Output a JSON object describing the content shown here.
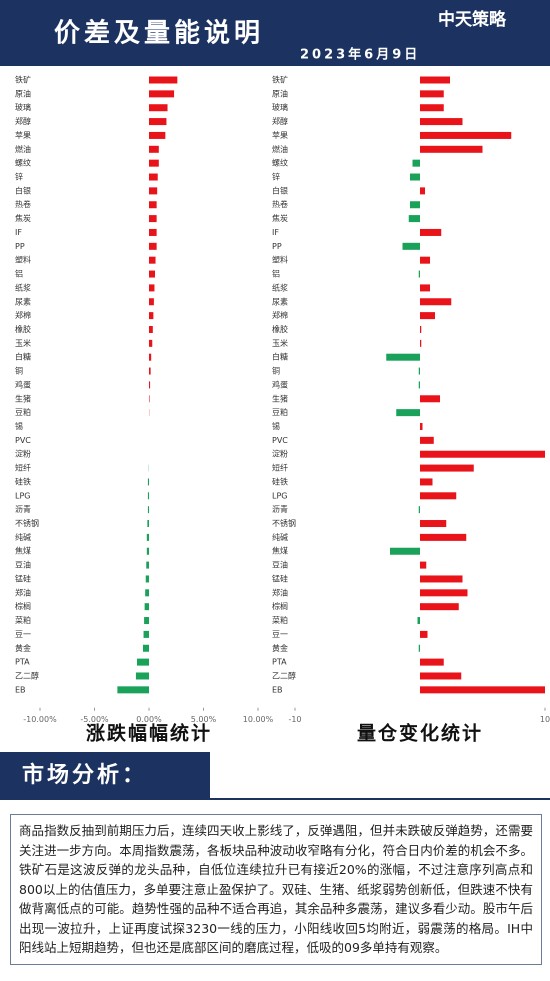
{
  "header": {
    "title": "价差及量能说明",
    "date": "2023年6月9日",
    "logo": "中天策略"
  },
  "chart_data": [
    {
      "type": "hbar",
      "title": "涨跌幅幅统计",
      "positive_color": "#e8141a",
      "negative_color": "#1aa15a",
      "categories": [
        "铁矿",
        "原油",
        "玻璃",
        "郑醇",
        "苹果",
        "燃油",
        "螺纹",
        "锌",
        "白银",
        "热卷",
        "焦炭",
        "IF",
        "PP",
        "塑料",
        "铝",
        "纸浆",
        "尿素",
        "郑棉",
        "橡胶",
        "玉米",
        "白糖",
        "铜",
        "鸡蛋",
        "生猪",
        "豆粕",
        "锡",
        "PVC",
        "淀粉",
        "短纤",
        "硅铁",
        "LPG",
        "沥青",
        "不锈钢",
        "纯碱",
        "焦煤",
        "豆油",
        "锰硅",
        "郑油",
        "棕榈",
        "菜粕",
        "豆一",
        "黄金",
        "PTA",
        "乙二醇",
        "EB"
      ],
      "values": [
        2.6,
        2.3,
        1.7,
        1.6,
        1.5,
        0.9,
        0.9,
        0.8,
        0.75,
        0.7,
        0.7,
        0.7,
        0.7,
        0.6,
        0.55,
        0.5,
        0.45,
        0.4,
        0.35,
        0.3,
        0.2,
        0.15,
        0.1,
        0.05,
        0.02,
        0,
        0,
        0,
        -0.02,
        -0.1,
        -0.1,
        -0.1,
        -0.15,
        -0.2,
        -0.2,
        -0.25,
        -0.3,
        -0.35,
        -0.4,
        -0.45,
        -0.5,
        -0.55,
        -1.1,
        -1.2,
        -2.9
      ],
      "xlim": [
        -10,
        10
      ],
      "xticks": [
        {
          "value": -10,
          "label": "-10.00%"
        },
        {
          "value": -5,
          "label": "-5.00%"
        },
        {
          "value": 0,
          "label": "0.00%"
        },
        {
          "value": 5,
          "label": "5.00%"
        },
        {
          "value": 10,
          "label": "10.00%"
        }
      ]
    },
    {
      "type": "hbar",
      "title": "量仓变化统计",
      "positive_color": "#e8141a",
      "negative_color": "#1aa15a",
      "categories": [
        "铁矿",
        "原油",
        "玻璃",
        "郑醇",
        "苹果",
        "燃油",
        "螺纹",
        "锌",
        "白银",
        "热卷",
        "焦炭",
        "IF",
        "PP",
        "塑料",
        "铝",
        "纸浆",
        "尿素",
        "郑棉",
        "橡胶",
        "玉米",
        "白糖",
        "铜",
        "鸡蛋",
        "生猪",
        "豆粕",
        "锡",
        "PVC",
        "淀粉",
        "短纤",
        "硅铁",
        "LPG",
        "沥青",
        "不锈钢",
        "纯碱",
        "焦煤",
        "豆油",
        "锰硅",
        "郑油",
        "棕榈",
        "菜粕",
        "豆一",
        "黄金",
        "PTA",
        "乙二醇",
        "EB"
      ],
      "values": [
        2.4,
        1.9,
        1.9,
        3.4,
        7.3,
        5.0,
        -0.6,
        -0.8,
        0.4,
        -0.8,
        -0.9,
        1.7,
        -1.4,
        0.8,
        -0.1,
        0.8,
        2.5,
        1.2,
        0.1,
        0.1,
        -2.7,
        -0.1,
        -0.1,
        1.6,
        -1.9,
        0.2,
        1.1,
        10,
        4.3,
        1.0,
        2.9,
        -0.1,
        2.1,
        3.7,
        -2.4,
        0.5,
        3.4,
        3.8,
        3.1,
        -0.2,
        0.6,
        -0.1,
        1.9,
        3.3,
        10
      ],
      "xlim": [
        -10,
        10
      ],
      "xticks": [
        -10,
        10
      ]
    }
  ],
  "section": {
    "title": "市场分析："
  },
  "analysis": {
    "text": "商品指数反抽到前期压力后，连续四天收上影线了，反弹遇阻，但并未跌破反弹趋势，还需要关注进一步方向。本周指数震荡，各板块品种波动收窄略有分化，符合日内价差的机会不多。铁矿石是这波反弹的龙头品种，自低位连续拉升已有接近20%的涨幅，不过注意序列高点和800以上的估值压力，多单要注意止盈保护了。双硅、生猪、纸浆弱势创新低，但跌速不快有做背离低点的可能。趋势性强的品种不适合再追，其余品种多震荡，建议多看少动。股市午后出现一波拉升，上证再度试探3230一线的压力，小阳线收回5均附近，弱震荡的格局。IH中阳线站上短期趋势，但也还是底部区间的磨底过程，低吸的09多单持有观察。"
  }
}
